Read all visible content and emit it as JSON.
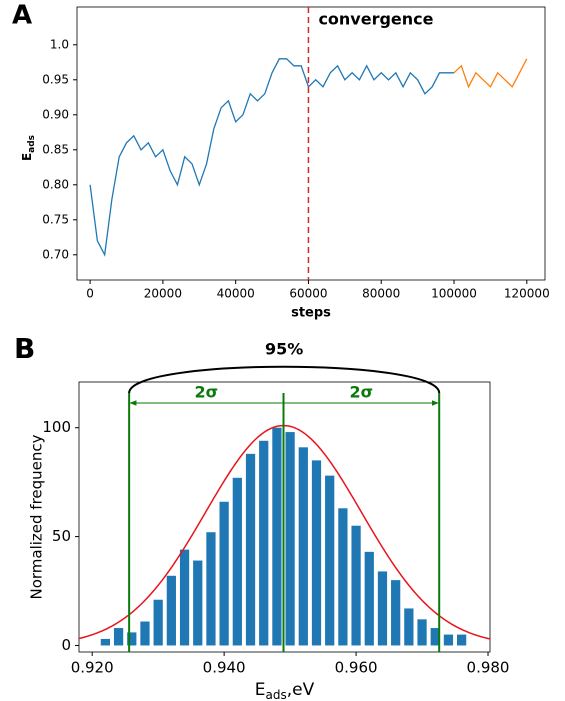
{
  "chart_data": [
    {
      "type": "line",
      "panel": "A",
      "xlabel": "steps",
      "ylabel_main": "E",
      "ylabel_sub": "ads",
      "annotation": "convergence",
      "vline": 60000,
      "vline_color": "#d62728",
      "x": [
        0,
        2000,
        4000,
        6000,
        8000,
        10000,
        12000,
        14000,
        16000,
        18000,
        20000,
        22000,
        24000,
        26000,
        28000,
        30000,
        32000,
        34000,
        36000,
        38000,
        40000,
        42000,
        44000,
        46000,
        48000,
        50000,
        52000,
        54000,
        56000,
        58000,
        60000,
        62000,
        64000,
        66000,
        68000,
        70000,
        72000,
        74000,
        76000,
        78000,
        80000,
        82000,
        84000,
        86000,
        88000,
        90000,
        92000,
        94000,
        96000,
        98000,
        100000,
        102000,
        104000,
        106000,
        108000,
        110000,
        112000,
        114000,
        116000,
        118000,
        120000
      ],
      "series": [
        {
          "color": "#1f77b4",
          "values": [
            0.8,
            0.72,
            0.7,
            0.78,
            0.84,
            0.86,
            0.87,
            0.85,
            0.86,
            0.84,
            0.85,
            0.82,
            0.8,
            0.84,
            0.83,
            0.8,
            0.83,
            0.88,
            0.91,
            0.92,
            0.89,
            0.9,
            0.93,
            0.92,
            0.93,
            0.96,
            0.98,
            0.98,
            0.97,
            0.97,
            0.94,
            0.95,
            0.94,
            0.96,
            0.97,
            0.95,
            0.96,
            0.95,
            0.97,
            0.95,
            0.96,
            0.95,
            0.96,
            0.94,
            0.96,
            0.95,
            0.93,
            0.94,
            0.96,
            0.96,
            0.96,
            null,
            null,
            null,
            null,
            null,
            null,
            null,
            null,
            null,
            null
          ]
        },
        {
          "color": "#ff7f0e",
          "values": [
            null,
            null,
            null,
            null,
            null,
            null,
            null,
            null,
            null,
            null,
            null,
            null,
            null,
            null,
            null,
            null,
            null,
            null,
            null,
            null,
            null,
            null,
            null,
            null,
            null,
            null,
            null,
            null,
            null,
            null,
            null,
            null,
            null,
            null,
            null,
            null,
            null,
            null,
            null,
            null,
            null,
            null,
            null,
            null,
            null,
            null,
            null,
            null,
            null,
            null,
            0.96,
            0.97,
            0.94,
            0.96,
            0.95,
            0.94,
            0.96,
            0.95,
            0.94,
            0.96,
            0.98
          ]
        }
      ],
      "xlim": [
        -3600,
        125000
      ],
      "xticks": [
        0,
        20000,
        40000,
        60000,
        80000,
        100000,
        120000
      ],
      "ylim": [
        0.664,
        1.054
      ],
      "yticks": [
        {
          "value": 0.7,
          "label": "0.70"
        },
        0.75,
        {
          "value": 0.8,
          "label": "0.80"
        },
        0.85,
        {
          "value": 0.9,
          "label": "0.90"
        },
        0.95,
        {
          "value": 1.0,
          "label": "1.0"
        }
      ]
    },
    {
      "type": "histogram",
      "panel": "B",
      "ylabel": "Normalized frequency",
      "xlabel_main": "E",
      "xlabel_sub": "ads",
      "xlabel_unit": ",eV",
      "bins": [
        0.921,
        0.923,
        0.925,
        0.927,
        0.929,
        0.931,
        0.933,
        0.935,
        0.937,
        0.939,
        0.941,
        0.943,
        0.945,
        0.947,
        0.949,
        0.951,
        0.953,
        0.955,
        0.957,
        0.959,
        0.961,
        0.963,
        0.965,
        0.967,
        0.969,
        0.971,
        0.973,
        0.975,
        0.977
      ],
      "values": [
        3,
        8,
        6,
        11,
        21,
        32,
        44,
        39,
        52,
        66,
        77,
        88,
        94,
        100,
        98,
        91,
        85,
        78,
        63,
        55,
        43,
        34,
        30,
        17,
        12,
        8,
        5,
        5
      ],
      "color": "#1f77b4",
      "rwidth": 0.7,
      "fit": {
        "mean": 0.949,
        "sigma": 0.0118,
        "peak": 101,
        "color": "#e8141c"
      },
      "interval": {
        "low": 0.9256,
        "center": 0.949,
        "high": 0.9726,
        "color": "#0a7a0a",
        "label_low": "2σ",
        "label_high": "2σ",
        "label_total": "95%"
      },
      "xlim": [
        0.918,
        0.9803
      ],
      "xticks": [
        {
          "value": 0.92,
          "label": "0.920"
        },
        {
          "value": 0.94,
          "label": "0.940"
        },
        {
          "value": 0.96,
          "label": "0.960"
        },
        {
          "value": 0.98,
          "label": "0.980"
        }
      ],
      "ylim": [
        -3,
        121
      ],
      "yticks": [
        0,
        50,
        100
      ]
    }
  ]
}
